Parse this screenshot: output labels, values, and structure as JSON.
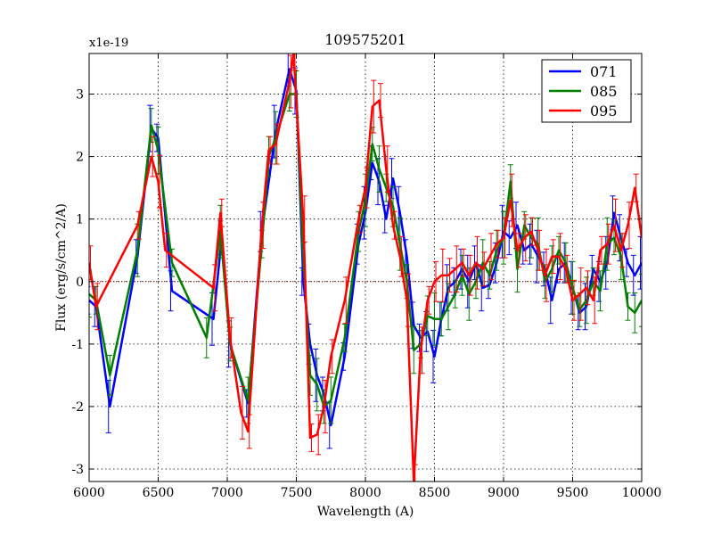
{
  "chart_data": {
    "type": "line",
    "title": "109575201",
    "xlabel": "Wavelength (A)",
    "ylabel": "Flux (erg/s/cm^2/A)",
    "y_scale_label": "x1e-19",
    "xlim": [
      6000,
      10000
    ],
    "ylim": [
      -3.2,
      3.65
    ],
    "xticks": [
      6000,
      6500,
      7000,
      7500,
      8000,
      8500,
      9000,
      9500,
      10000
    ],
    "yticks": [
      -3,
      -2,
      -1,
      0,
      1,
      2,
      3
    ],
    "grid": true,
    "legend_position": "top-right",
    "series": [
      {
        "name": "071",
        "color": "#0000ff",
        "x": [
          6000,
          6050,
          6150,
          6350,
          6450,
          6500,
          6600,
          6900,
          6960,
          7020,
          7150,
          7250,
          7350,
          7450,
          7500,
          7550,
          7600,
          7650,
          7700,
          7750,
          7850,
          7950,
          8000,
          8050,
          8100,
          8150,
          8200,
          8250,
          8300,
          8350,
          8400,
          8450,
          8500,
          8550,
          8600,
          8650,
          8700,
          8750,
          8800,
          8850,
          8900,
          8950,
          9000,
          9050,
          9100,
          9150,
          9200,
          9250,
          9300,
          9350,
          9400,
          9450,
          9500,
          9550,
          9600,
          9650,
          9700,
          9750,
          9800,
          9850,
          9900,
          9950,
          10000
        ],
        "values": [
          -0.3,
          -0.4,
          -2.0,
          0.4,
          2.45,
          2.3,
          -0.15,
          -0.6,
          0.7,
          -1.0,
          -1.95,
          0.8,
          2.4,
          3.4,
          3.05,
          0.0,
          -1.0,
          -1.5,
          -1.8,
          -2.3,
          -1.2,
          0.6,
          1.1,
          1.9,
          1.6,
          1.0,
          1.65,
          1.1,
          0.4,
          -0.7,
          -0.9,
          -0.8,
          -1.2,
          -0.6,
          -0.1,
          0.0,
          0.2,
          0.0,
          0.3,
          -0.1,
          -0.05,
          0.3,
          0.8,
          0.7,
          0.9,
          0.5,
          0.6,
          0.4,
          0.2,
          -0.3,
          0.2,
          0.3,
          -0.1,
          -0.5,
          -0.4,
          0.2,
          0.0,
          0.3,
          1.1,
          0.7,
          0.3,
          0.1,
          0.3
        ]
      },
      {
        "name": "085",
        "color": "#007f00",
        "x": [
          6000,
          6050,
          6150,
          6350,
          6450,
          6500,
          6600,
          6850,
          6950,
          7020,
          7150,
          7250,
          7300,
          7350,
          7450,
          7500,
          7550,
          7600,
          7650,
          7700,
          7750,
          7850,
          7950,
          8000,
          8050,
          8100,
          8150,
          8200,
          8250,
          8300,
          8350,
          8400,
          8450,
          8500,
          8550,
          8600,
          8650,
          8700,
          8750,
          8800,
          8850,
          8900,
          8950,
          9000,
          9050,
          9100,
          9150,
          9200,
          9250,
          9300,
          9350,
          9400,
          9450,
          9500,
          9550,
          9600,
          9650,
          9700,
          9750,
          9800,
          9850,
          9900,
          9950,
          10000
        ],
        "values": [
          -0.2,
          -0.3,
          -1.5,
          0.5,
          2.5,
          2.1,
          0.3,
          -0.9,
          0.8,
          -1.0,
          -1.9,
          0.6,
          2.0,
          2.3,
          3.0,
          3.0,
          0.4,
          -1.5,
          -1.65,
          -2.0,
          -1.9,
          -0.9,
          0.8,
          1.3,
          2.2,
          1.8,
          1.5,
          1.2,
          0.6,
          0.0,
          -1.1,
          -1.0,
          -0.55,
          -0.6,
          -0.6,
          -0.4,
          -0.2,
          0.1,
          -0.2,
          0.0,
          0.3,
          0.1,
          0.5,
          0.7,
          1.6,
          0.2,
          0.9,
          0.7,
          0.6,
          0.0,
          0.2,
          0.5,
          0.3,
          -0.1,
          -0.45,
          -0.3,
          0.0,
          -0.15,
          0.6,
          0.7,
          0.4,
          -0.4,
          -0.5,
          -0.3
        ]
      },
      {
        "name": "095",
        "color": "#ff0000",
        "x": [
          6000,
          6050,
          6350,
          6450,
          6500,
          6550,
          6900,
          6950,
          7020,
          7100,
          7150,
          7250,
          7300,
          7350,
          7450,
          7480,
          7550,
          7600,
          7650,
          7700,
          7750,
          7850,
          7950,
          8000,
          8050,
          8100,
          8150,
          8200,
          8250,
          8300,
          8350,
          8400,
          8450,
          8500,
          8550,
          8600,
          8650,
          8700,
          8750,
          8800,
          8850,
          8900,
          8950,
          9000,
          9050,
          9100,
          9150,
          9200,
          9250,
          9300,
          9350,
          9400,
          9450,
          9500,
          9550,
          9600,
          9650,
          9700,
          9750,
          9800,
          9850,
          9900,
          9950,
          10000
        ],
        "values": [
          0.3,
          -0.4,
          0.9,
          2.0,
          1.6,
          0.5,
          -0.1,
          1.1,
          -0.9,
          -2.1,
          -2.4,
          0.9,
          2.1,
          2.2,
          3.2,
          3.65,
          1.0,
          -2.5,
          -2.45,
          -2.0,
          -1.2,
          -0.3,
          1.0,
          1.5,
          2.8,
          2.9,
          1.8,
          0.9,
          0.4,
          -0.3,
          -3.2,
          -1.1,
          -0.3,
          0.0,
          0.1,
          0.1,
          0.2,
          0.3,
          0.1,
          0.3,
          0.2,
          0.4,
          0.6,
          0.7,
          1.3,
          0.5,
          0.7,
          0.8,
          0.5,
          0.1,
          0.4,
          0.4,
          0.2,
          -0.3,
          -0.2,
          -0.1,
          -0.3,
          0.5,
          0.6,
          0.9,
          0.5,
          0.9,
          1.5,
          0.7
        ]
      }
    ]
  }
}
